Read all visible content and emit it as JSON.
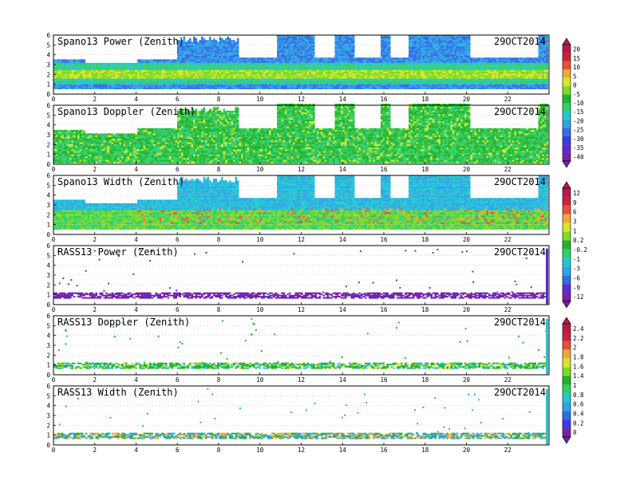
{
  "palette": [
    "#7a1fa2",
    "#5a2bd6",
    "#3a3ae6",
    "#2f6ee6",
    "#2aa6e6",
    "#20c9d0",
    "#2fcf6a",
    "#1fb52a",
    "#7fdc1f",
    "#d8e62a",
    "#f0a830",
    "#e8503a",
    "#cf1f3a",
    "#b8184a"
  ],
  "chart_data": [
    {
      "type": "heatmap",
      "title": "Spano13 Power (Zenith)",
      "date": "29OCT2014",
      "x_ticks": [
        "0",
        "2",
        "4",
        "6",
        "8",
        "10",
        "12",
        "14",
        "16",
        "18",
        "20",
        "22"
      ],
      "y_ticks": [
        "0",
        "1",
        "2",
        "3",
        "4",
        "5",
        "6"
      ],
      "xlim": [
        0,
        24
      ],
      "ylim": [
        0,
        6
      ],
      "colorbar": [
        "20",
        "15",
        "10",
        "5",
        "0",
        "-5",
        "-10",
        "-15",
        "-20",
        "-25",
        "-30",
        "-35",
        "-40"
      ],
      "summary": {
        "profile": "power",
        "base_km": 0.5,
        "top_km": [
          3.2,
          3.0,
          3.0,
          3.5,
          5.5,
          6.0,
          3.6,
          3.6,
          3.6,
          6.0,
          3.6,
          3.4,
          6.0
        ]
      }
    },
    {
      "type": "heatmap",
      "title": "Spano13 Doppler (Zenith)",
      "date": "29OCT2014",
      "x_ticks": [
        "0",
        "2",
        "4",
        "6",
        "8",
        "10",
        "12",
        "14",
        "16",
        "18",
        "20",
        "22"
      ],
      "y_ticks": [
        "0",
        "1",
        "2",
        "3",
        "4",
        "5",
        "6"
      ],
      "xlim": [
        0,
        24
      ],
      "ylim": [
        0,
        6
      ],
      "colorbar": null,
      "summary": {
        "profile": "doppler",
        "base_km": 0.1,
        "top_km": [
          3.4,
          3.3,
          3.2,
          3.6,
          5.8,
          6.0,
          3.6,
          3.6,
          3.6,
          6.0,
          3.6,
          3.4,
          6.0
        ]
      }
    },
    {
      "type": "heatmap",
      "title": "Spano13 Width (Zenith)",
      "date": "29OCT2014",
      "x_ticks": [
        "0",
        "2",
        "4",
        "6",
        "8",
        "10",
        "12",
        "14",
        "16",
        "18",
        "20",
        "22"
      ],
      "y_ticks": [
        "0",
        "1",
        "2",
        "3",
        "4",
        "5",
        "6"
      ],
      "xlim": [
        0,
        24
      ],
      "ylim": [
        0,
        6
      ],
      "colorbar": [
        "12",
        "9",
        "6",
        "3",
        "1",
        "0.2",
        "-0.2",
        "-1",
        "-3",
        "-6",
        "-9",
        "-12"
      ],
      "summary": {
        "profile": "width",
        "base_km": 0.5,
        "top_km": [
          3.3,
          3.1,
          3.1,
          3.6,
          5.8,
          6.0,
          3.6,
          3.6,
          3.6,
          6.0,
          3.6,
          3.4,
          6.0
        ]
      }
    },
    {
      "type": "heatmap",
      "title": "RASS13 Power (Zenith)",
      "date": "29OCT2014",
      "x_ticks": [
        "0",
        "2",
        "4",
        "6",
        "8",
        "10",
        "12",
        "14",
        "16",
        "18",
        "20",
        "22"
      ],
      "y_ticks": [
        "0",
        "1",
        "2",
        "3",
        "4",
        "5",
        "6"
      ],
      "xlim": [
        0,
        24
      ],
      "ylim": [
        0,
        6
      ],
      "colorbar": null,
      "summary": {
        "profile": "rass-purple",
        "base_km": 0.6,
        "top_km": [
          1.1
        ]
      }
    },
    {
      "type": "heatmap",
      "title": "RASS13 Doppler (Zenith)",
      "date": "29OCT2014",
      "x_ticks": [
        "0",
        "2",
        "4",
        "6",
        "8",
        "10",
        "12",
        "14",
        "16",
        "18",
        "20",
        "22"
      ],
      "y_ticks": [
        "0",
        "1",
        "2",
        "3",
        "4",
        "5",
        "6"
      ],
      "xlim": [
        0,
        24
      ],
      "ylim": [
        0,
        6
      ],
      "colorbar": [
        "2.4",
        "2.2",
        "2",
        "1.8",
        "1.6",
        "1.4",
        "1",
        "0.8",
        "0.6",
        "0.4",
        "0.2",
        "0"
      ],
      "summary": {
        "profile": "rass-green",
        "base_km": 0.6,
        "top_km": [
          1.1
        ]
      }
    },
    {
      "type": "heatmap",
      "title": "RASS13 Width (Zenith)",
      "date": "29OCT2014",
      "x_ticks": [
        "0",
        "2",
        "4",
        "6",
        "8",
        "10",
        "12",
        "14",
        "16",
        "18",
        "20",
        "22"
      ],
      "y_ticks": [
        "0",
        "1",
        "2",
        "3",
        "4",
        "5",
        "6"
      ],
      "xlim": [
        0,
        24
      ],
      "ylim": [
        0,
        6
      ],
      "colorbar": null,
      "summary": {
        "profile": "rass-mixed",
        "base_km": 0.6,
        "top_km": [
          1.1
        ]
      }
    }
  ]
}
